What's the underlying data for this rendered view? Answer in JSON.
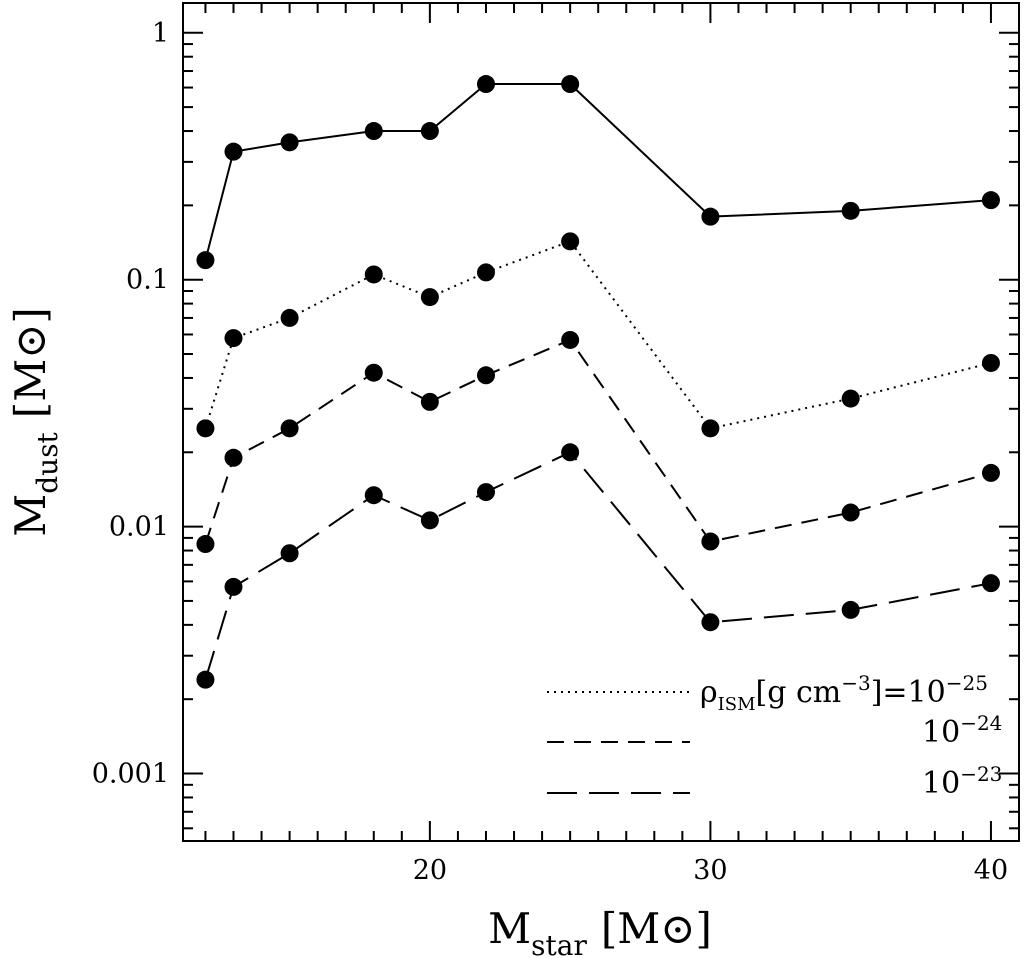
{
  "chart_data": {
    "type": "line",
    "title": "",
    "xlabel": {
      "main": "M",
      "sub": "star",
      "unit": "[M⊙]"
    },
    "ylabel": {
      "main": "M",
      "sub": "dust",
      "unit": "[M⊙]"
    },
    "xlim": [
      11.2,
      41
    ],
    "ylim": [
      0.000533,
      1.32
    ],
    "yscale": "log",
    "x_ticks": [
      20,
      30,
      40
    ],
    "x_tick_labels": [
      "20",
      "30",
      "40"
    ],
    "y_ticks": [
      0.001,
      0.01,
      0.1,
      1
    ],
    "y_tick_labels": [
      "0.001",
      "0.01",
      "0.1",
      "1"
    ],
    "x": [
      12,
      13,
      15,
      18,
      20,
      22,
      25,
      30,
      35,
      40
    ],
    "series": [
      {
        "style": "solid",
        "values": [
          0.12,
          0.33,
          0.36,
          0.4,
          0.4,
          0.62,
          0.62,
          0.18,
          0.19,
          0.21
        ]
      },
      {
        "style": "dotted",
        "values": [
          0.025,
          0.058,
          0.07,
          0.105,
          0.085,
          0.107,
          0.143,
          0.025,
          0.033,
          0.046
        ]
      },
      {
        "style": "dashed",
        "values": [
          0.0085,
          0.019,
          0.025,
          0.042,
          0.032,
          0.041,
          0.057,
          0.0087,
          0.0114,
          0.0165
        ]
      },
      {
        "style": "long-dashed",
        "values": [
          0.0024,
          0.0057,
          0.0078,
          0.0134,
          0.0106,
          0.0138,
          0.02,
          0.0041,
          0.0046,
          0.0059
        ]
      }
    ],
    "legend": {
      "position": "bottom-right",
      "items": [
        {
          "series": 1,
          "prefix": "ρ",
          "prefix_sub": "ISM",
          "middle": "[g cm",
          "middle_sup": "−3",
          "suffix": "]=10",
          "suffix_sup": "−25"
        },
        {
          "series": 2,
          "prefix": "",
          "prefix_sub": "",
          "middle": "",
          "middle_sup": "",
          "suffix": "10",
          "suffix_sup": "−24"
        },
        {
          "series": 3,
          "prefix": "",
          "prefix_sub": "",
          "middle": "",
          "middle_sup": "",
          "suffix": "10",
          "suffix_sup": "−23"
        }
      ]
    },
    "grid": false
  }
}
